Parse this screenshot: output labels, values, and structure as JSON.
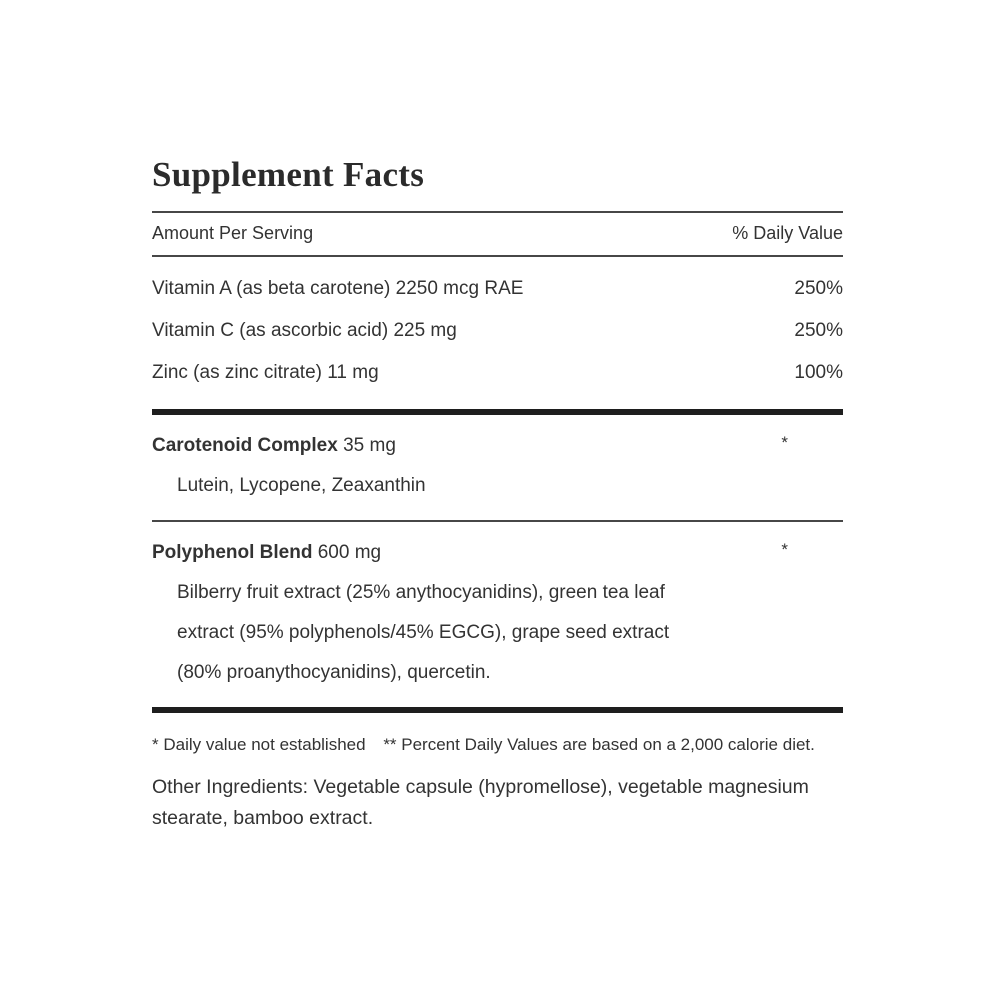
{
  "label": {
    "title": "Supplement Facts",
    "header": {
      "amount_label": "Amount Per Serving",
      "dv_label": "% Daily Value"
    },
    "nutrients": [
      {
        "name": "Vitamin A (as beta carotene) 2250 mcg RAE",
        "dv": "250%"
      },
      {
        "name": "Vitamin C (as ascorbic acid) 225 mg",
        "dv": "250%"
      },
      {
        "name": "Zinc (as zinc citrate) 11 mg",
        "dv": "100%"
      }
    ],
    "sections": [
      {
        "name": "Carotenoid Complex",
        "amount": "35 mg",
        "dv": "*",
        "lines": [
          "Lutein, Lycopene, Zeaxanthin"
        ]
      },
      {
        "name": "Polyphenol Blend",
        "amount": "600 mg",
        "dv": "*",
        "lines": [
          "Bilberry fruit extract (25% anythocyanidins), green tea leaf",
          "extract (95% polyphenols/45% EGCG), grape seed extract",
          "(80% proanythocyanidins), quercetin."
        ]
      }
    ],
    "footnotes": {
      "daily_value": "* Daily value not established",
      "percent": "** Percent Daily Values are based on a 2,000 calorie diet."
    },
    "other_ingredients": "Other Ingredients: Vegetable capsule (hypromellose), vegetable magnesium stearate, bamboo extract.",
    "colors": {
      "text": "#333333",
      "title": "#2b2b2b",
      "rule_thin": "#474747",
      "rule_thick": "#1e1e1e",
      "background": "#ffffff"
    }
  }
}
